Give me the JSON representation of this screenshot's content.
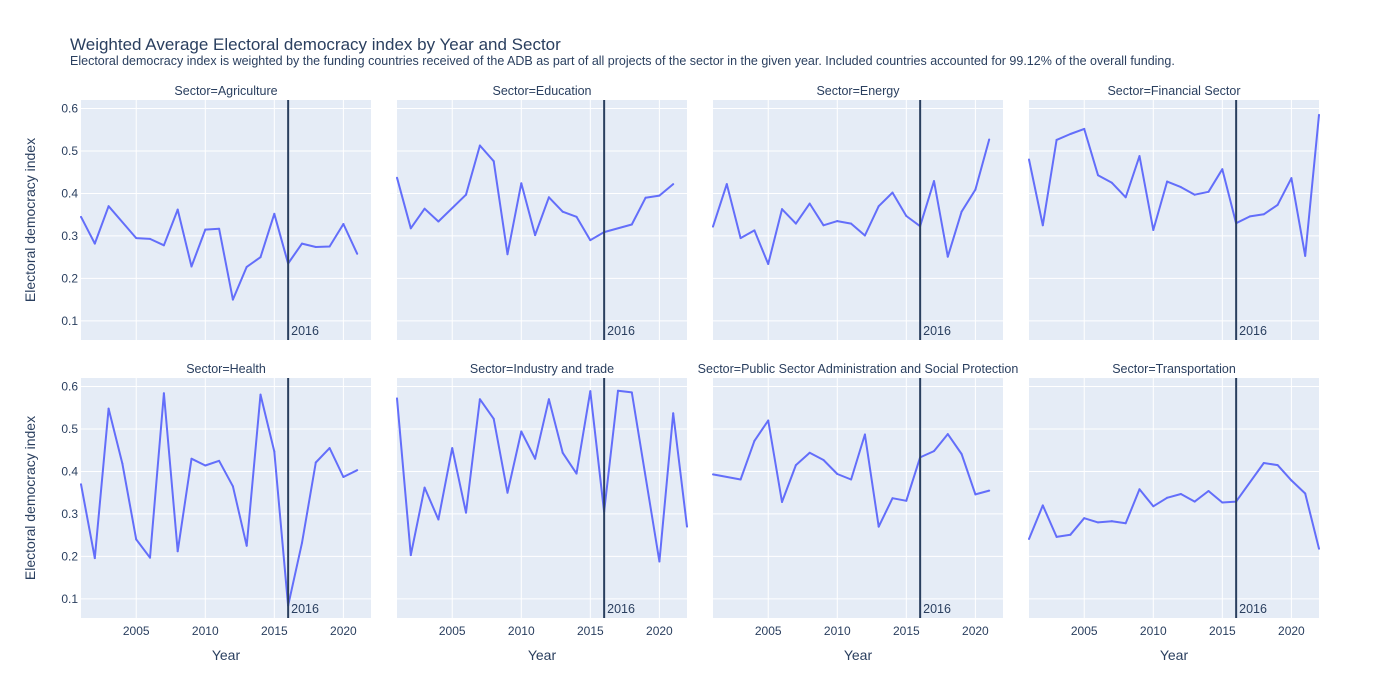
{
  "chart_data": {
    "type": "line",
    "title": "Weighted Average Electoral democracy index by Year and Sector",
    "subtitle": "Electoral democracy index is weighted by the funding countries received of the ADB as part of all projects of the sector in the given year. Included countries accounted for 99.12% of the overall funding.",
    "xlabel": "Year",
    "ylabel": "Electoral democracy index",
    "xlim": [
      2001,
      2022
    ],
    "ylim": [
      0.055,
      0.62
    ],
    "x_ticks": [
      2005,
      2010,
      2015,
      2020
    ],
    "y_ticks": [
      0.1,
      0.2,
      0.3,
      0.4,
      0.5,
      0.6
    ],
    "grid": true,
    "vline": {
      "x": 2016,
      "label": "2016"
    },
    "colors": {
      "line": "#636efa",
      "vline": "#2a3f5f",
      "plot_bg": "#e5ecf6",
      "grid": "#ffffff"
    },
    "panels": [
      {
        "name": "Sector=Agriculture",
        "x": [
          2001,
          2002,
          2003,
          2005,
          2006,
          2007,
          2008,
          2009,
          2010,
          2011,
          2012,
          2013,
          2014,
          2015,
          2016,
          2017,
          2018,
          2019,
          2020,
          2021
        ],
        "y": [
          0.345,
          0.282,
          0.37,
          0.295,
          0.293,
          0.278,
          0.362,
          0.228,
          0.315,
          0.317,
          0.15,
          0.227,
          0.25,
          0.352,
          0.235,
          0.282,
          0.274,
          0.275,
          0.328,
          0.258
        ]
      },
      {
        "name": "Sector=Education",
        "x": [
          2001,
          2002,
          2003,
          2004,
          2006,
          2007,
          2008,
          2009,
          2010,
          2011,
          2012,
          2013,
          2014,
          2015,
          2016,
          2018,
          2019,
          2020,
          2021
        ],
        "y": [
          0.437,
          0.318,
          0.364,
          0.334,
          0.397,
          0.513,
          0.476,
          0.257,
          0.424,
          0.302,
          0.391,
          0.357,
          0.345,
          0.29,
          0.309,
          0.327,
          0.39,
          0.395,
          0.422
        ]
      },
      {
        "name": "Sector=Energy",
        "x": [
          2001,
          2002,
          2003,
          2004,
          2005,
          2006,
          2007,
          2008,
          2009,
          2010,
          2011,
          2012,
          2013,
          2014,
          2015,
          2016,
          2017,
          2018,
          2019,
          2020,
          2021
        ],
        "y": [
          0.322,
          0.422,
          0.295,
          0.313,
          0.234,
          0.363,
          0.329,
          0.376,
          0.325,
          0.335,
          0.329,
          0.301,
          0.37,
          0.402,
          0.347,
          0.323,
          0.429,
          0.251,
          0.357,
          0.409,
          0.527
        ]
      },
      {
        "name": "Sector=Financial Sector",
        "x": [
          2001,
          2002,
          2003,
          2004,
          2005,
          2006,
          2007,
          2008,
          2009,
          2010,
          2011,
          2012,
          2013,
          2014,
          2015,
          2016,
          2017,
          2018,
          2019,
          2020,
          2021,
          2022
        ],
        "y": [
          0.48,
          0.325,
          0.526,
          0.54,
          0.552,
          0.443,
          0.425,
          0.391,
          0.488,
          0.314,
          0.428,
          0.415,
          0.397,
          0.404,
          0.457,
          0.33,
          0.346,
          0.351,
          0.373,
          0.436,
          0.253,
          0.585
        ]
      },
      {
        "name": "Sector=Health",
        "x": [
          2001,
          2002,
          2003,
          2004,
          2005,
          2006,
          2007,
          2008,
          2009,
          2010,
          2011,
          2012,
          2013,
          2014,
          2015,
          2016,
          2017,
          2018,
          2019,
          2020,
          2021
        ],
        "y": [
          0.37,
          0.196,
          0.548,
          0.418,
          0.24,
          0.197,
          0.584,
          0.212,
          0.43,
          0.414,
          0.425,
          0.365,
          0.225,
          0.581,
          0.447,
          0.084,
          0.232,
          0.421,
          0.455,
          0.387,
          0.403
        ]
      },
      {
        "name": "Sector=Industry and trade",
        "x": [
          2001,
          2002,
          2003,
          2004,
          2005,
          2006,
          2007,
          2008,
          2009,
          2010,
          2011,
          2012,
          2013,
          2014,
          2015,
          2016,
          2017,
          2018,
          2020,
          2021,
          2022
        ],
        "y": [
          0.572,
          0.203,
          0.362,
          0.287,
          0.455,
          0.303,
          0.57,
          0.524,
          0.35,
          0.494,
          0.43,
          0.57,
          0.444,
          0.395,
          0.589,
          0.305,
          0.59,
          0.586,
          0.188,
          0.537,
          0.27
        ]
      },
      {
        "name": "Sector=Public Sector Administration and Social Protection",
        "x": [
          2001,
          2003,
          2004,
          2005,
          2006,
          2007,
          2008,
          2009,
          2010,
          2011,
          2012,
          2013,
          2014,
          2015,
          2016,
          2017,
          2018,
          2019,
          2020,
          2021
        ],
        "y": [
          0.393,
          0.381,
          0.472,
          0.52,
          0.328,
          0.415,
          0.444,
          0.427,
          0.394,
          0.381,
          0.487,
          0.27,
          0.337,
          0.331,
          0.433,
          0.448,
          0.488,
          0.441,
          0.346,
          0.355
        ]
      },
      {
        "name": "Sector=Transportation",
        "x": [
          2001,
          2002,
          2003,
          2004,
          2005,
          2006,
          2007,
          2008,
          2009,
          2010,
          2011,
          2012,
          2013,
          2014,
          2015,
          2016,
          2018,
          2019,
          2020,
          2021,
          2022
        ],
        "y": [
          0.241,
          0.32,
          0.246,
          0.251,
          0.29,
          0.28,
          0.283,
          0.278,
          0.358,
          0.318,
          0.338,
          0.347,
          0.329,
          0.354,
          0.327,
          0.329,
          0.42,
          0.415,
          0.379,
          0.348,
          0.218
        ]
      }
    ]
  }
}
